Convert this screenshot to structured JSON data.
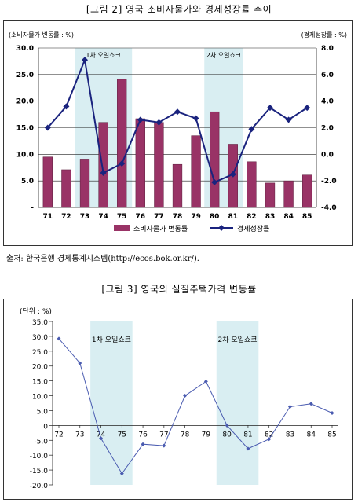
{
  "figure1": {
    "title": "[그림 2] 영국 소비자물가와 경제성장률 추이",
    "source": "출처: 한국은행 경제통계시스템(http://ecos.bok.or.kr/)."
  },
  "figure2": {
    "title": "[그림 3] 영국의 실질주택가격 변동률"
  },
  "chart_data": [
    {
      "type": "bar",
      "left_axis_label": "(소비자물가 변동률 : %)",
      "right_axis_label": "(경제성장률 : %)",
      "categories": [
        "71",
        "72",
        "73",
        "74",
        "75",
        "76",
        "77",
        "78",
        "79",
        "80",
        "81",
        "82",
        "83",
        "84",
        "85"
      ],
      "series": [
        {
          "name": "소비자물가 변동률",
          "type": "bar",
          "axis": "left",
          "color": "#993366",
          "values": [
            9.5,
            7.1,
            9.1,
            16.0,
            24.1,
            16.7,
            16.0,
            8.1,
            13.5,
            18.0,
            11.9,
            8.6,
            4.6,
            5.0,
            6.1
          ]
        },
        {
          "name": "경제성장률",
          "type": "line",
          "axis": "right",
          "color": "#1a237e",
          "values": [
            2.0,
            3.6,
            7.1,
            -1.4,
            -0.7,
            2.6,
            2.4,
            3.2,
            2.7,
            -2.1,
            -1.5,
            1.9,
            3.5,
            2.6,
            3.5
          ]
        }
      ],
      "left_ticks": [
        "-",
        "5.0",
        "10.0",
        "15.0",
        "20.0",
        "25.0",
        "30.0"
      ],
      "left_ylim": [
        0,
        30
      ],
      "right_ticks": [
        "-4.0",
        "-2.0",
        "0.0",
        "2.0",
        "4.0",
        "6.0",
        "8.0"
      ],
      "right_ylim": [
        -4,
        8
      ],
      "shaded_bands": [
        {
          "label": "1차 오일쇼크",
          "from": "73",
          "to": "75",
          "color": "#d9eef2"
        },
        {
          "label": "2차 오일쇼크",
          "from": "80",
          "to": "81",
          "color": "#d9eef2"
        }
      ],
      "legend_placement": "bottom"
    },
    {
      "type": "line",
      "ylabel": "(단위 : %)",
      "categories": [
        "72",
        "73",
        "74",
        "75",
        "76",
        "77",
        "78",
        "79",
        "80",
        "81",
        "82",
        "83",
        "84",
        "85"
      ],
      "series": [
        {
          "color": "#4a5bb0",
          "values": [
            29.2,
            21.0,
            -4.3,
            -16.2,
            -6.3,
            -6.8,
            10.0,
            14.8,
            0.0,
            -7.8,
            -4.6,
            6.3,
            7.3,
            4.2
          ]
        }
      ],
      "y_ticks": [
        "35.0",
        "30.0",
        "25.0",
        "20.0",
        "15.0",
        "10.0",
        "5.0",
        "0",
        "-5.0",
        "-10.0",
        "-15.0",
        "-20.0"
      ],
      "ylim": [
        -20,
        35
      ],
      "shaded_bands": [
        {
          "label": "1차 오일쇼크",
          "from": "74",
          "to": "75",
          "color": "#d9eef2"
        },
        {
          "label": "2차 오일쇼크",
          "from": "80",
          "to": "81",
          "color": "#d9eef2"
        }
      ]
    }
  ]
}
